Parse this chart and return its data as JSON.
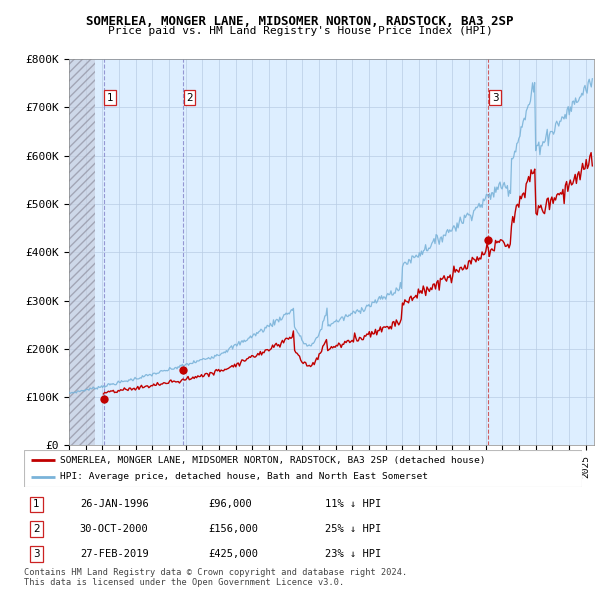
{
  "title": "SOMERLEA, MONGER LANE, MIDSOMER NORTON, RADSTOCK, BA3 2SP",
  "subtitle": "Price paid vs. HM Land Registry's House Price Index (HPI)",
  "ylim": [
    0,
    800000
  ],
  "yticks": [
    0,
    100000,
    200000,
    300000,
    400000,
    500000,
    600000,
    700000,
    800000
  ],
  "ytick_labels": [
    "£0",
    "£100K",
    "£200K",
    "£300K",
    "£400K",
    "£500K",
    "£600K",
    "£700K",
    "£800K"
  ],
  "xlim_start": 1994.0,
  "xlim_end": 2025.5,
  "hpi_color": "#7ab3d9",
  "price_color": "#c00000",
  "marker_color": "#c00000",
  "plot_bg_color": "#ddeeff",
  "legend_label1": "SOMERLEA, MONGER LANE, MIDSOMER NORTON, RADSTOCK, BA3 2SP (detached house)",
  "legend_label2": "HPI: Average price, detached house, Bath and North East Somerset",
  "transactions": [
    {
      "num": 1,
      "date_decimal": 1996.07,
      "price": 96000,
      "hpi_pct": "11% ↓ HPI",
      "date_str": "26-JAN-1996",
      "price_str": "£96,000",
      "vline_color": "#8888cc",
      "vline_style": "--"
    },
    {
      "num": 2,
      "date_decimal": 2000.83,
      "price": 156000,
      "hpi_pct": "25% ↓ HPI",
      "date_str": "30-OCT-2000",
      "price_str": "£156,000",
      "vline_color": "#8888cc",
      "vline_style": "--"
    },
    {
      "num": 3,
      "date_decimal": 2019.16,
      "price": 425000,
      "hpi_pct": "23% ↓ HPI",
      "date_str": "27-FEB-2019",
      "price_str": "£425,000",
      "vline_color": "#cc4444",
      "vline_style": "--"
    }
  ],
  "footer1": "Contains HM Land Registry data © Crown copyright and database right 2024.",
  "footer2": "This data is licensed under the Open Government Licence v3.0."
}
